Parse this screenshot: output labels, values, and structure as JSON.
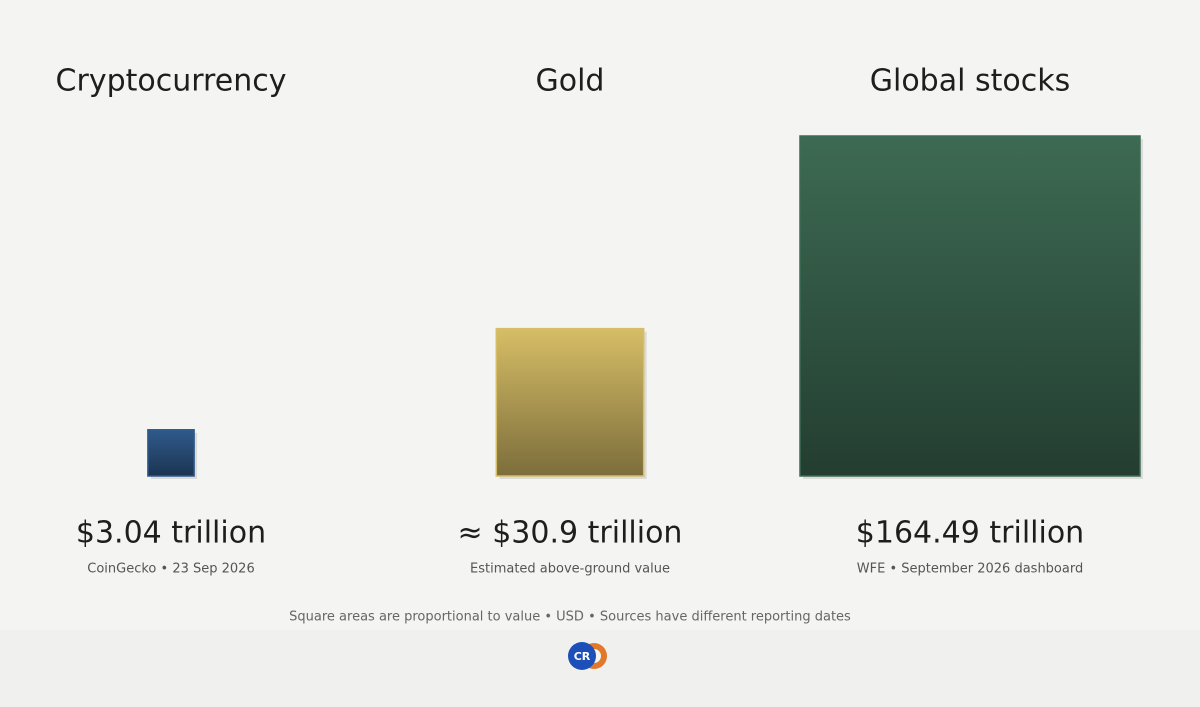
{
  "chart_data": {
    "type": "square",
    "categories": [
      "Cryptocurrency",
      "Gold",
      "Global stocks"
    ],
    "values": [
      3.04,
      30.9,
      164.49
    ],
    "value_labels": [
      "$3.04 trillion",
      "≈ $30.9 trillion",
      "$164.49 trillion"
    ],
    "sources": [
      "CoinGecko • 23 Sep 2026",
      "Estimated above-ground value",
      "WFE • September 2026 dashboard"
    ],
    "colors": [
      "#2f5a8c",
      "#d6bd66",
      "#3d6a53"
    ],
    "footnote": "Square areas are proportional to value • USD • Sources have different reporting dates"
  }
}
